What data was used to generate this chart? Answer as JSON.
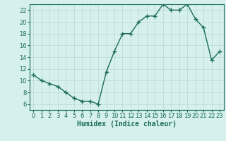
{
  "x": [
    0,
    1,
    2,
    3,
    4,
    5,
    6,
    7,
    8,
    9,
    10,
    11,
    12,
    13,
    14,
    15,
    16,
    17,
    18,
    19,
    20,
    21,
    22,
    23
  ],
  "y": [
    11,
    10,
    9.5,
    9,
    8,
    7,
    6.5,
    6.5,
    6,
    11.5,
    15,
    18,
    18,
    20,
    21,
    21,
    23,
    22,
    22,
    23,
    20.5,
    19,
    13.5,
    15
  ],
  "line_color": "#1a6b5a",
  "marker": "+",
  "marker_size": 4,
  "bg_color": "#d6f0ed",
  "grid_color": "#b8d8d4",
  "xlabel": "Humidex (Indice chaleur)",
  "xlim": [
    -0.5,
    23.5
  ],
  "ylim": [
    5.0,
    23.0
  ],
  "yticks": [
    6,
    8,
    10,
    12,
    14,
    16,
    18,
    20,
    22
  ],
  "xticks": [
    0,
    1,
    2,
    3,
    4,
    5,
    6,
    7,
    8,
    9,
    10,
    11,
    12,
    13,
    14,
    15,
    16,
    17,
    18,
    19,
    20,
    21,
    22,
    23
  ],
  "xlabel_fontsize": 7,
  "tick_fontsize": 6,
  "line_width": 1.0,
  "marker_color": "#1a6b5a"
}
